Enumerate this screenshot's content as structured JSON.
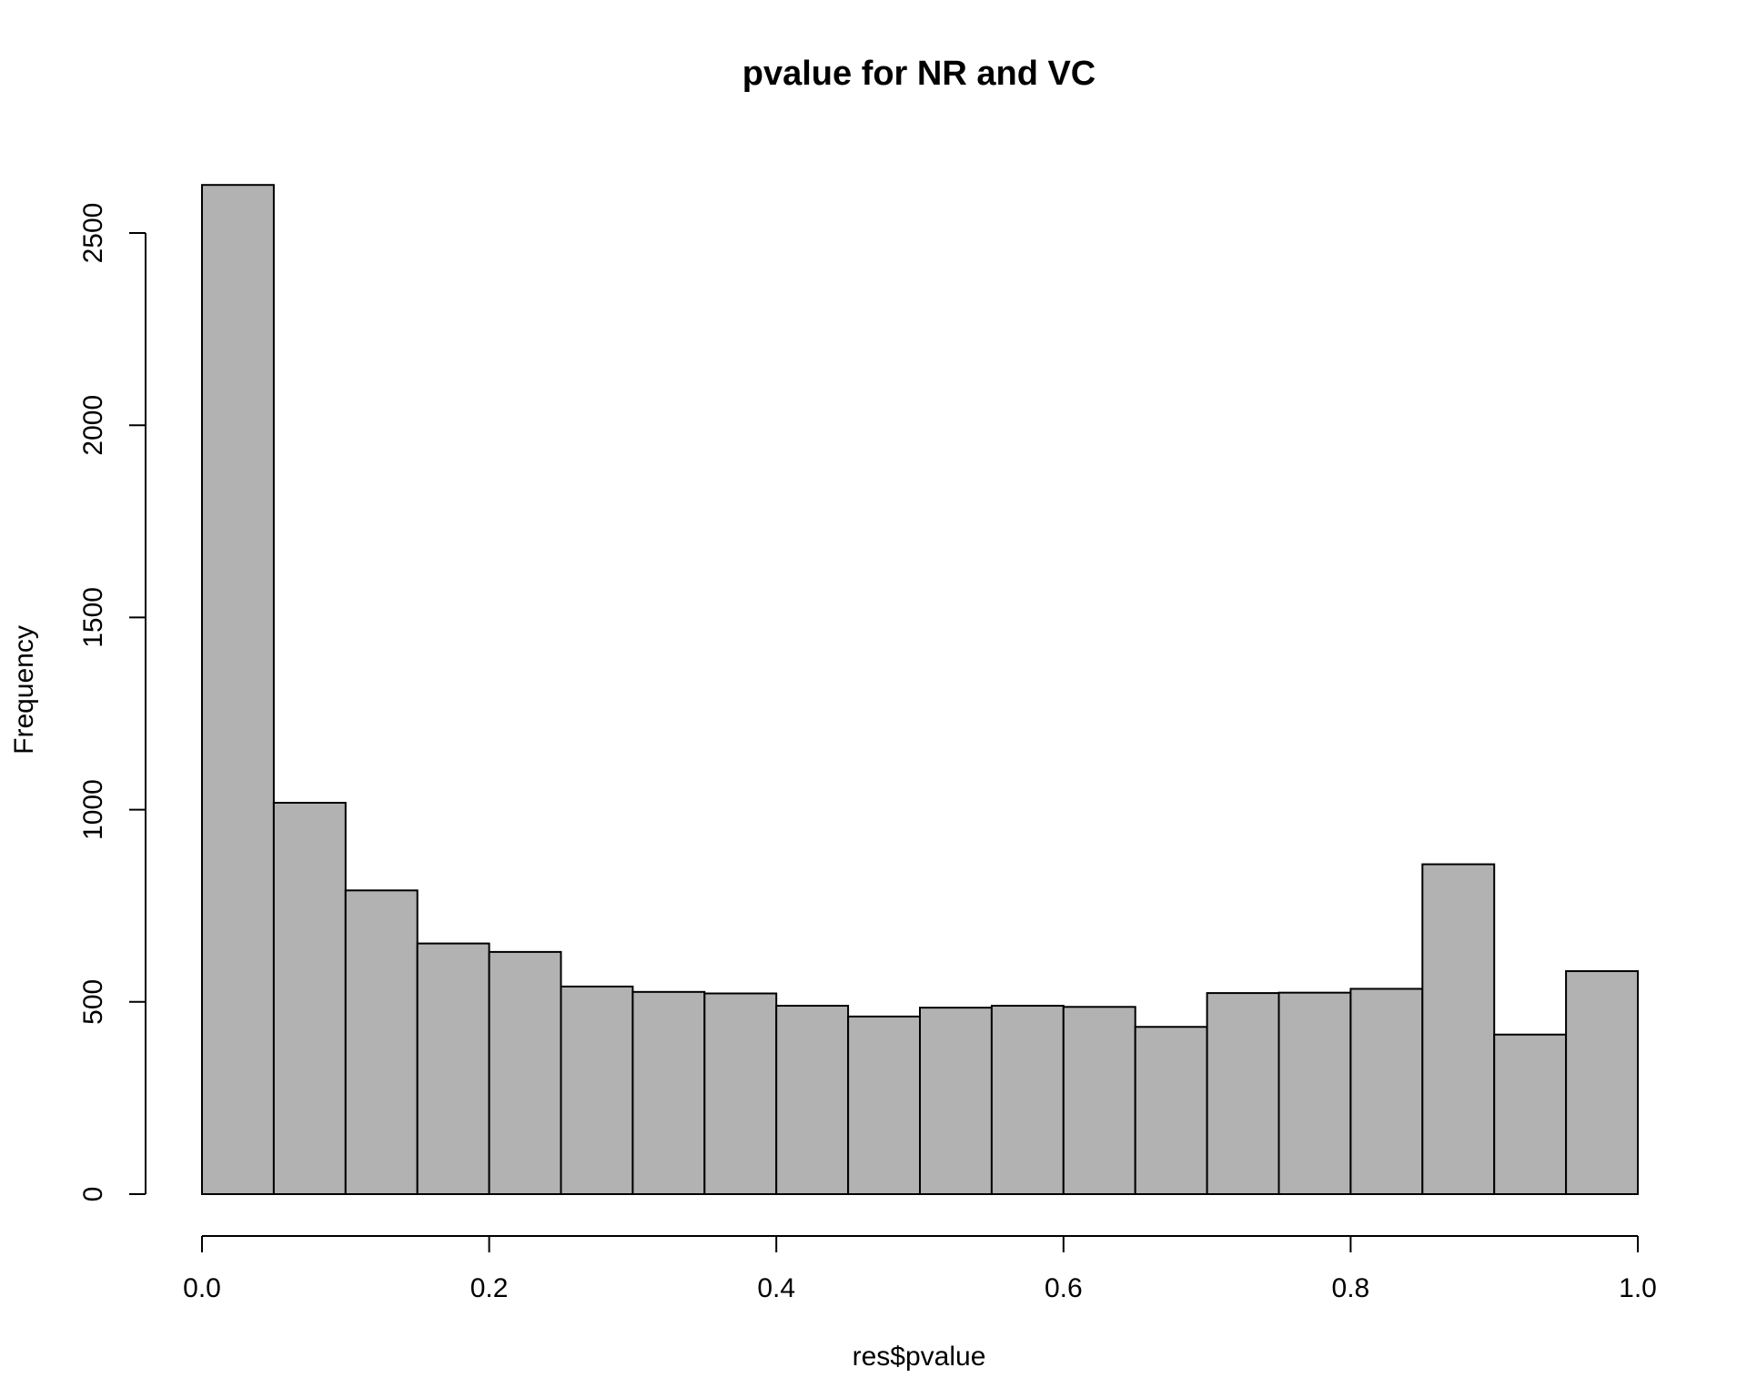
{
  "chart_data": {
    "type": "bar",
    "title": "pvalue for NR and VC",
    "xlabel": "res$pvalue",
    "ylabel": "Frequency",
    "bin_edges": [
      0.0,
      0.05,
      0.1,
      0.15,
      0.2,
      0.25,
      0.3,
      0.35,
      0.4,
      0.45,
      0.5,
      0.55,
      0.6,
      0.65,
      0.7,
      0.75,
      0.8,
      0.85,
      0.9,
      0.95,
      1.0
    ],
    "values": [
      2625,
      1018,
      790,
      652,
      630,
      540,
      526,
      522,
      490,
      462,
      485,
      490,
      487,
      435,
      523,
      524,
      534,
      858,
      415,
      580
    ],
    "xlim": [
      0.0,
      1.0
    ],
    "ylim": [
      0,
      2625
    ],
    "x_ticks": [
      {
        "value": 0.0,
        "label": "0.0"
      },
      {
        "value": 0.2,
        "label": "0.2"
      },
      {
        "value": 0.4,
        "label": "0.4"
      },
      {
        "value": 0.6,
        "label": "0.6"
      },
      {
        "value": 0.8,
        "label": "0.8"
      },
      {
        "value": 1.0,
        "label": "1.0"
      }
    ],
    "y_ticks": [
      {
        "value": 0,
        "label": "0"
      },
      {
        "value": 500,
        "label": "500"
      },
      {
        "value": 1000,
        "label": "1000"
      },
      {
        "value": 1500,
        "label": "1500"
      },
      {
        "value": 2000,
        "label": "2000"
      },
      {
        "value": 2500,
        "label": "2500"
      }
    ],
    "bar_color": "#b2b2b2",
    "edge_color": "#000000",
    "grid": false,
    "legend": "none"
  }
}
